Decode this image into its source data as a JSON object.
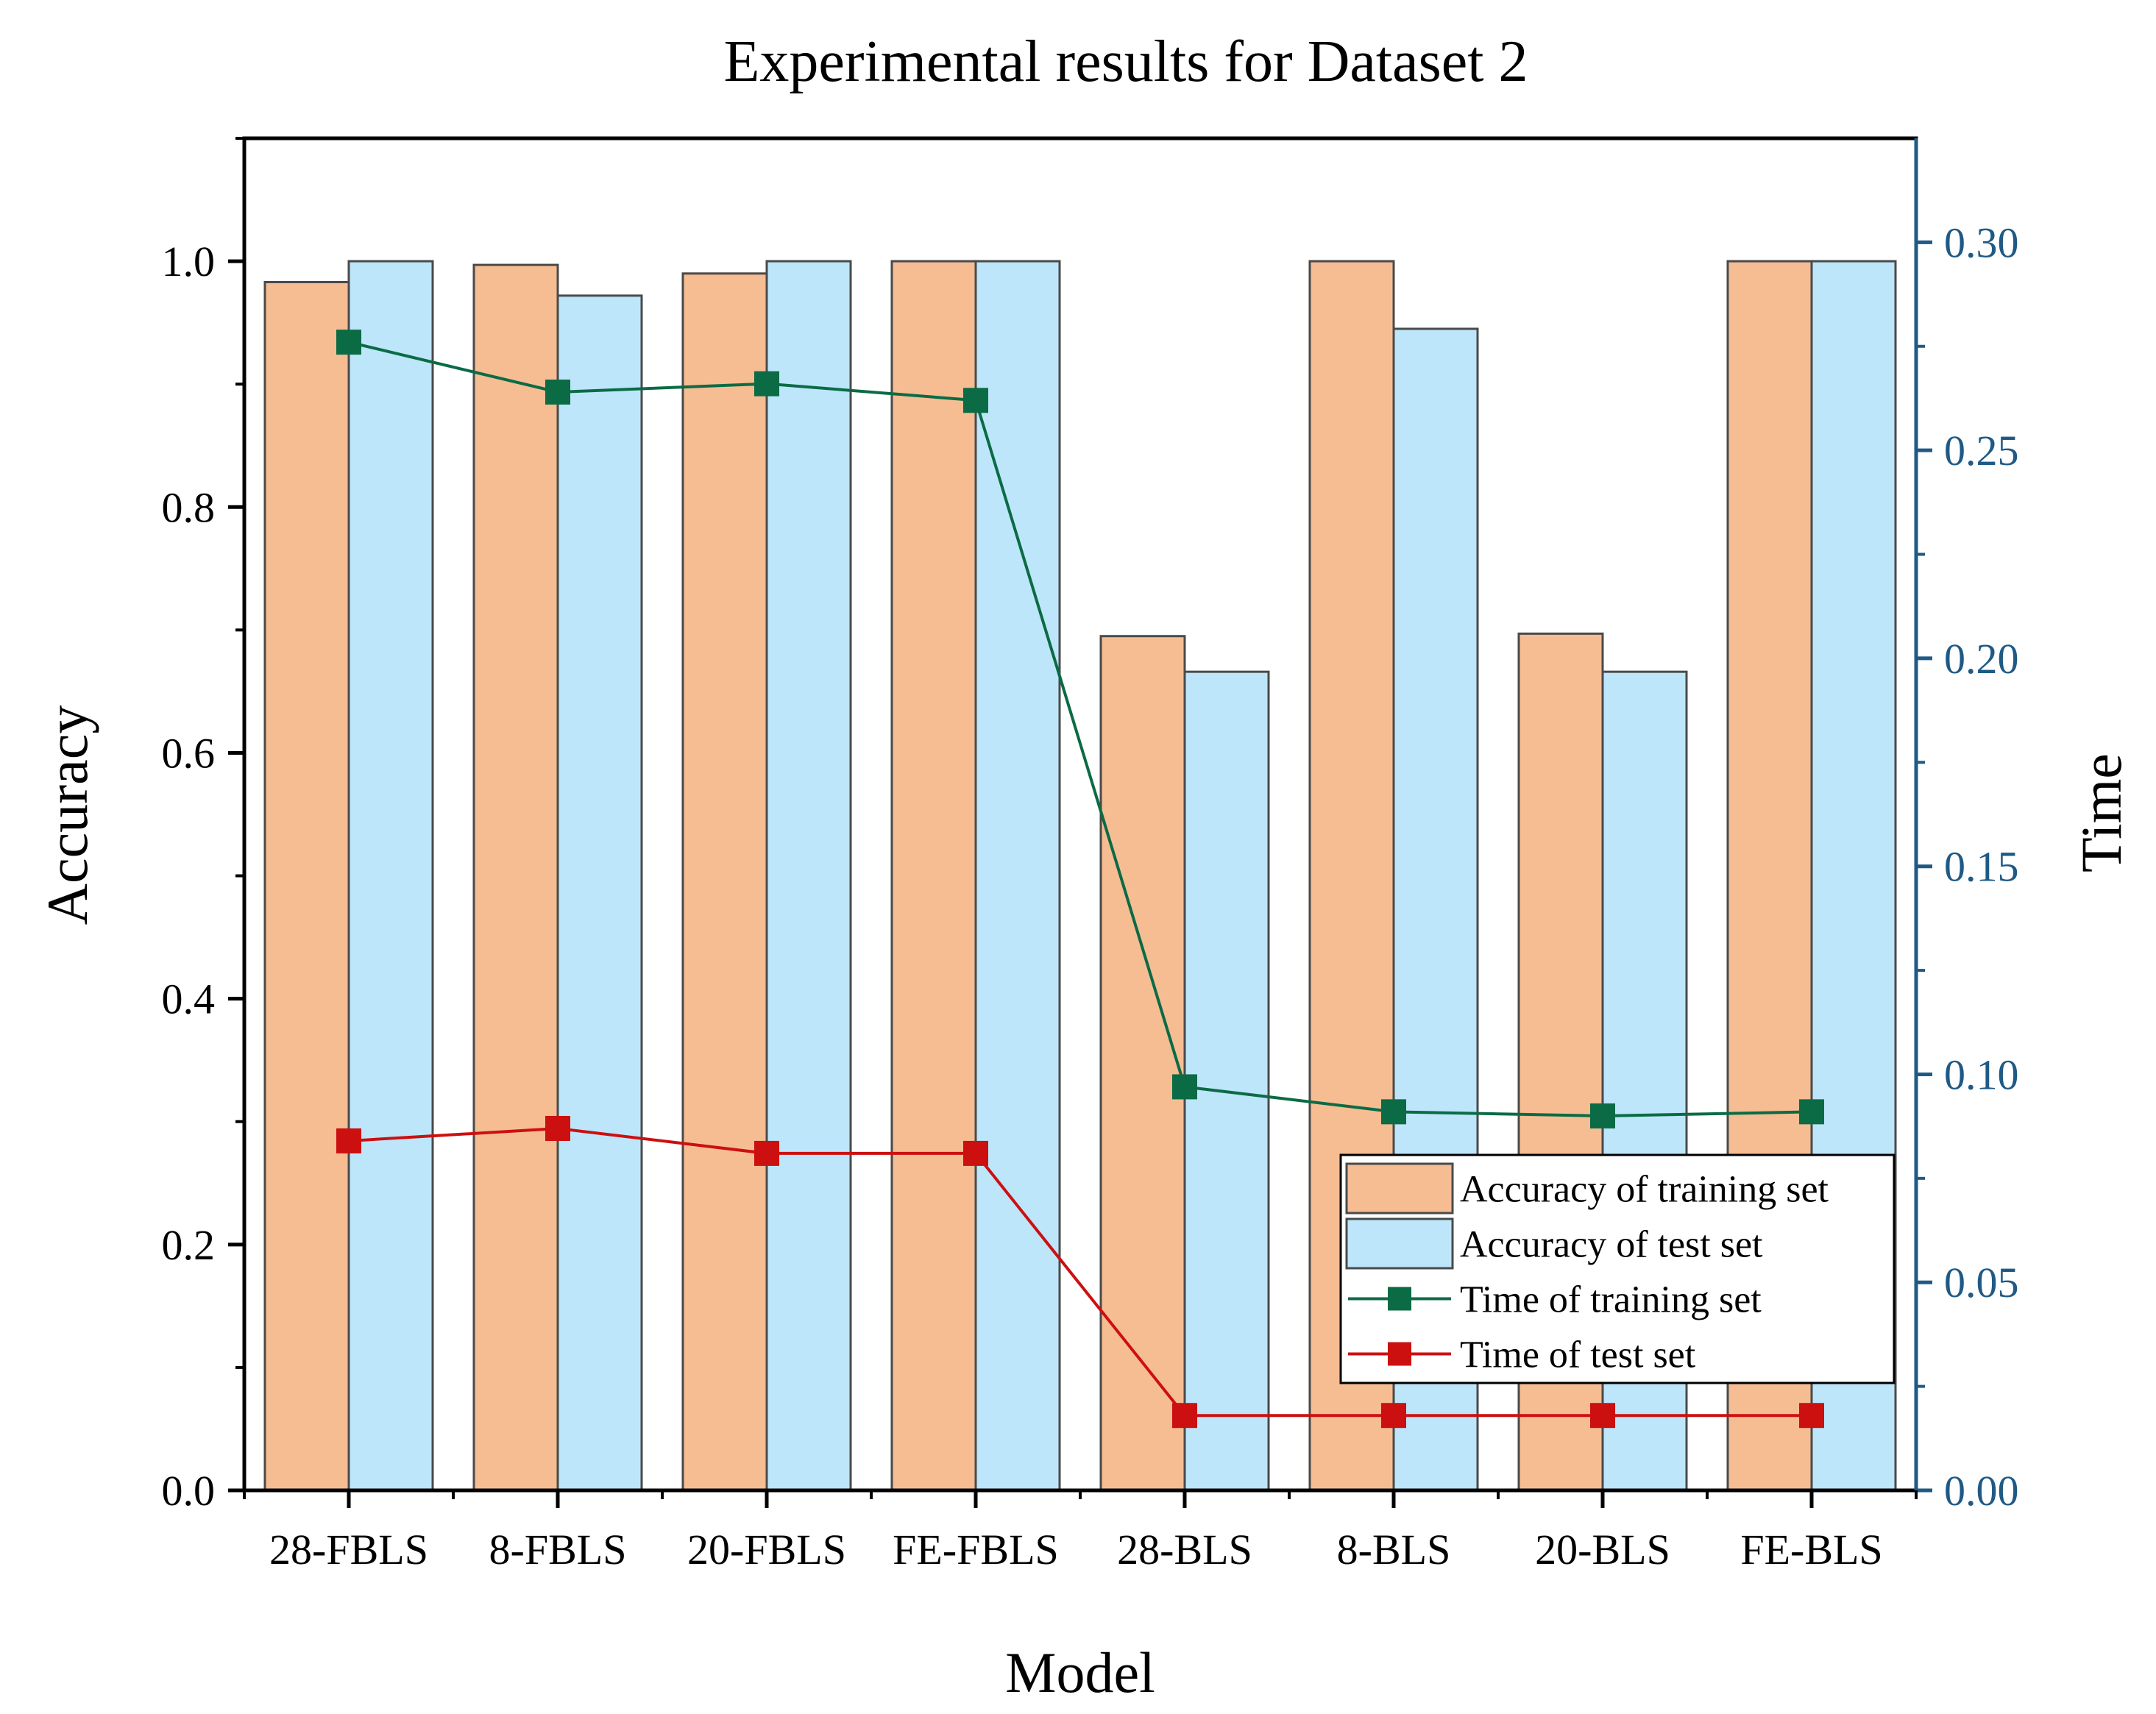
{
  "chart_data": {
    "type": "bar",
    "title": "Experimental results for Dataset 2",
    "xlabel": "Model",
    "ylabel": "Accuracy",
    "y2label": "Time",
    "categories": [
      "28-FBLS",
      "8-FBLS",
      "20-FBLS",
      "FE-FBLS",
      "28-BLS",
      "8-BLS",
      "20-BLS",
      "FE-BLS"
    ],
    "ylim": [
      0,
      1.1
    ],
    "y_ticks": [
      "0.0",
      "0.2",
      "0.4",
      "0.6",
      "0.8",
      "1.0"
    ],
    "y2lim": [
      0,
      0.325
    ],
    "y2_ticks": [
      "0.00",
      "0.05",
      "0.10",
      "0.15",
      "0.20",
      "0.25",
      "0.30"
    ],
    "series": [
      {
        "name": "Accuracy of training set",
        "kind": "bar",
        "axis": "left",
        "color": "#f6bd93",
        "values": [
          0.983,
          0.997,
          0.99,
          1.0,
          0.695,
          1.0,
          0.697,
          1.0
        ]
      },
      {
        "name": "Accuracy of test set",
        "kind": "bar",
        "axis": "left",
        "color": "#bde6fb",
        "values": [
          1.0,
          0.972,
          1.0,
          1.0,
          0.666,
          0.945,
          0.666,
          1.0
        ]
      },
      {
        "name": "Time of training set",
        "kind": "line",
        "axis": "right",
        "color": "#0b6b45",
        "values": [
          0.276,
          0.264,
          0.266,
          0.262,
          0.097,
          0.091,
          0.09,
          0.091
        ]
      },
      {
        "name": "Time of test set",
        "kind": "line",
        "axis": "right",
        "color": "#cc1010",
        "values": [
          0.084,
          0.087,
          0.081,
          0.081,
          0.018,
          0.018,
          0.018,
          0.018
        ]
      }
    ],
    "legend_position": "lower-right",
    "grid": false
  }
}
